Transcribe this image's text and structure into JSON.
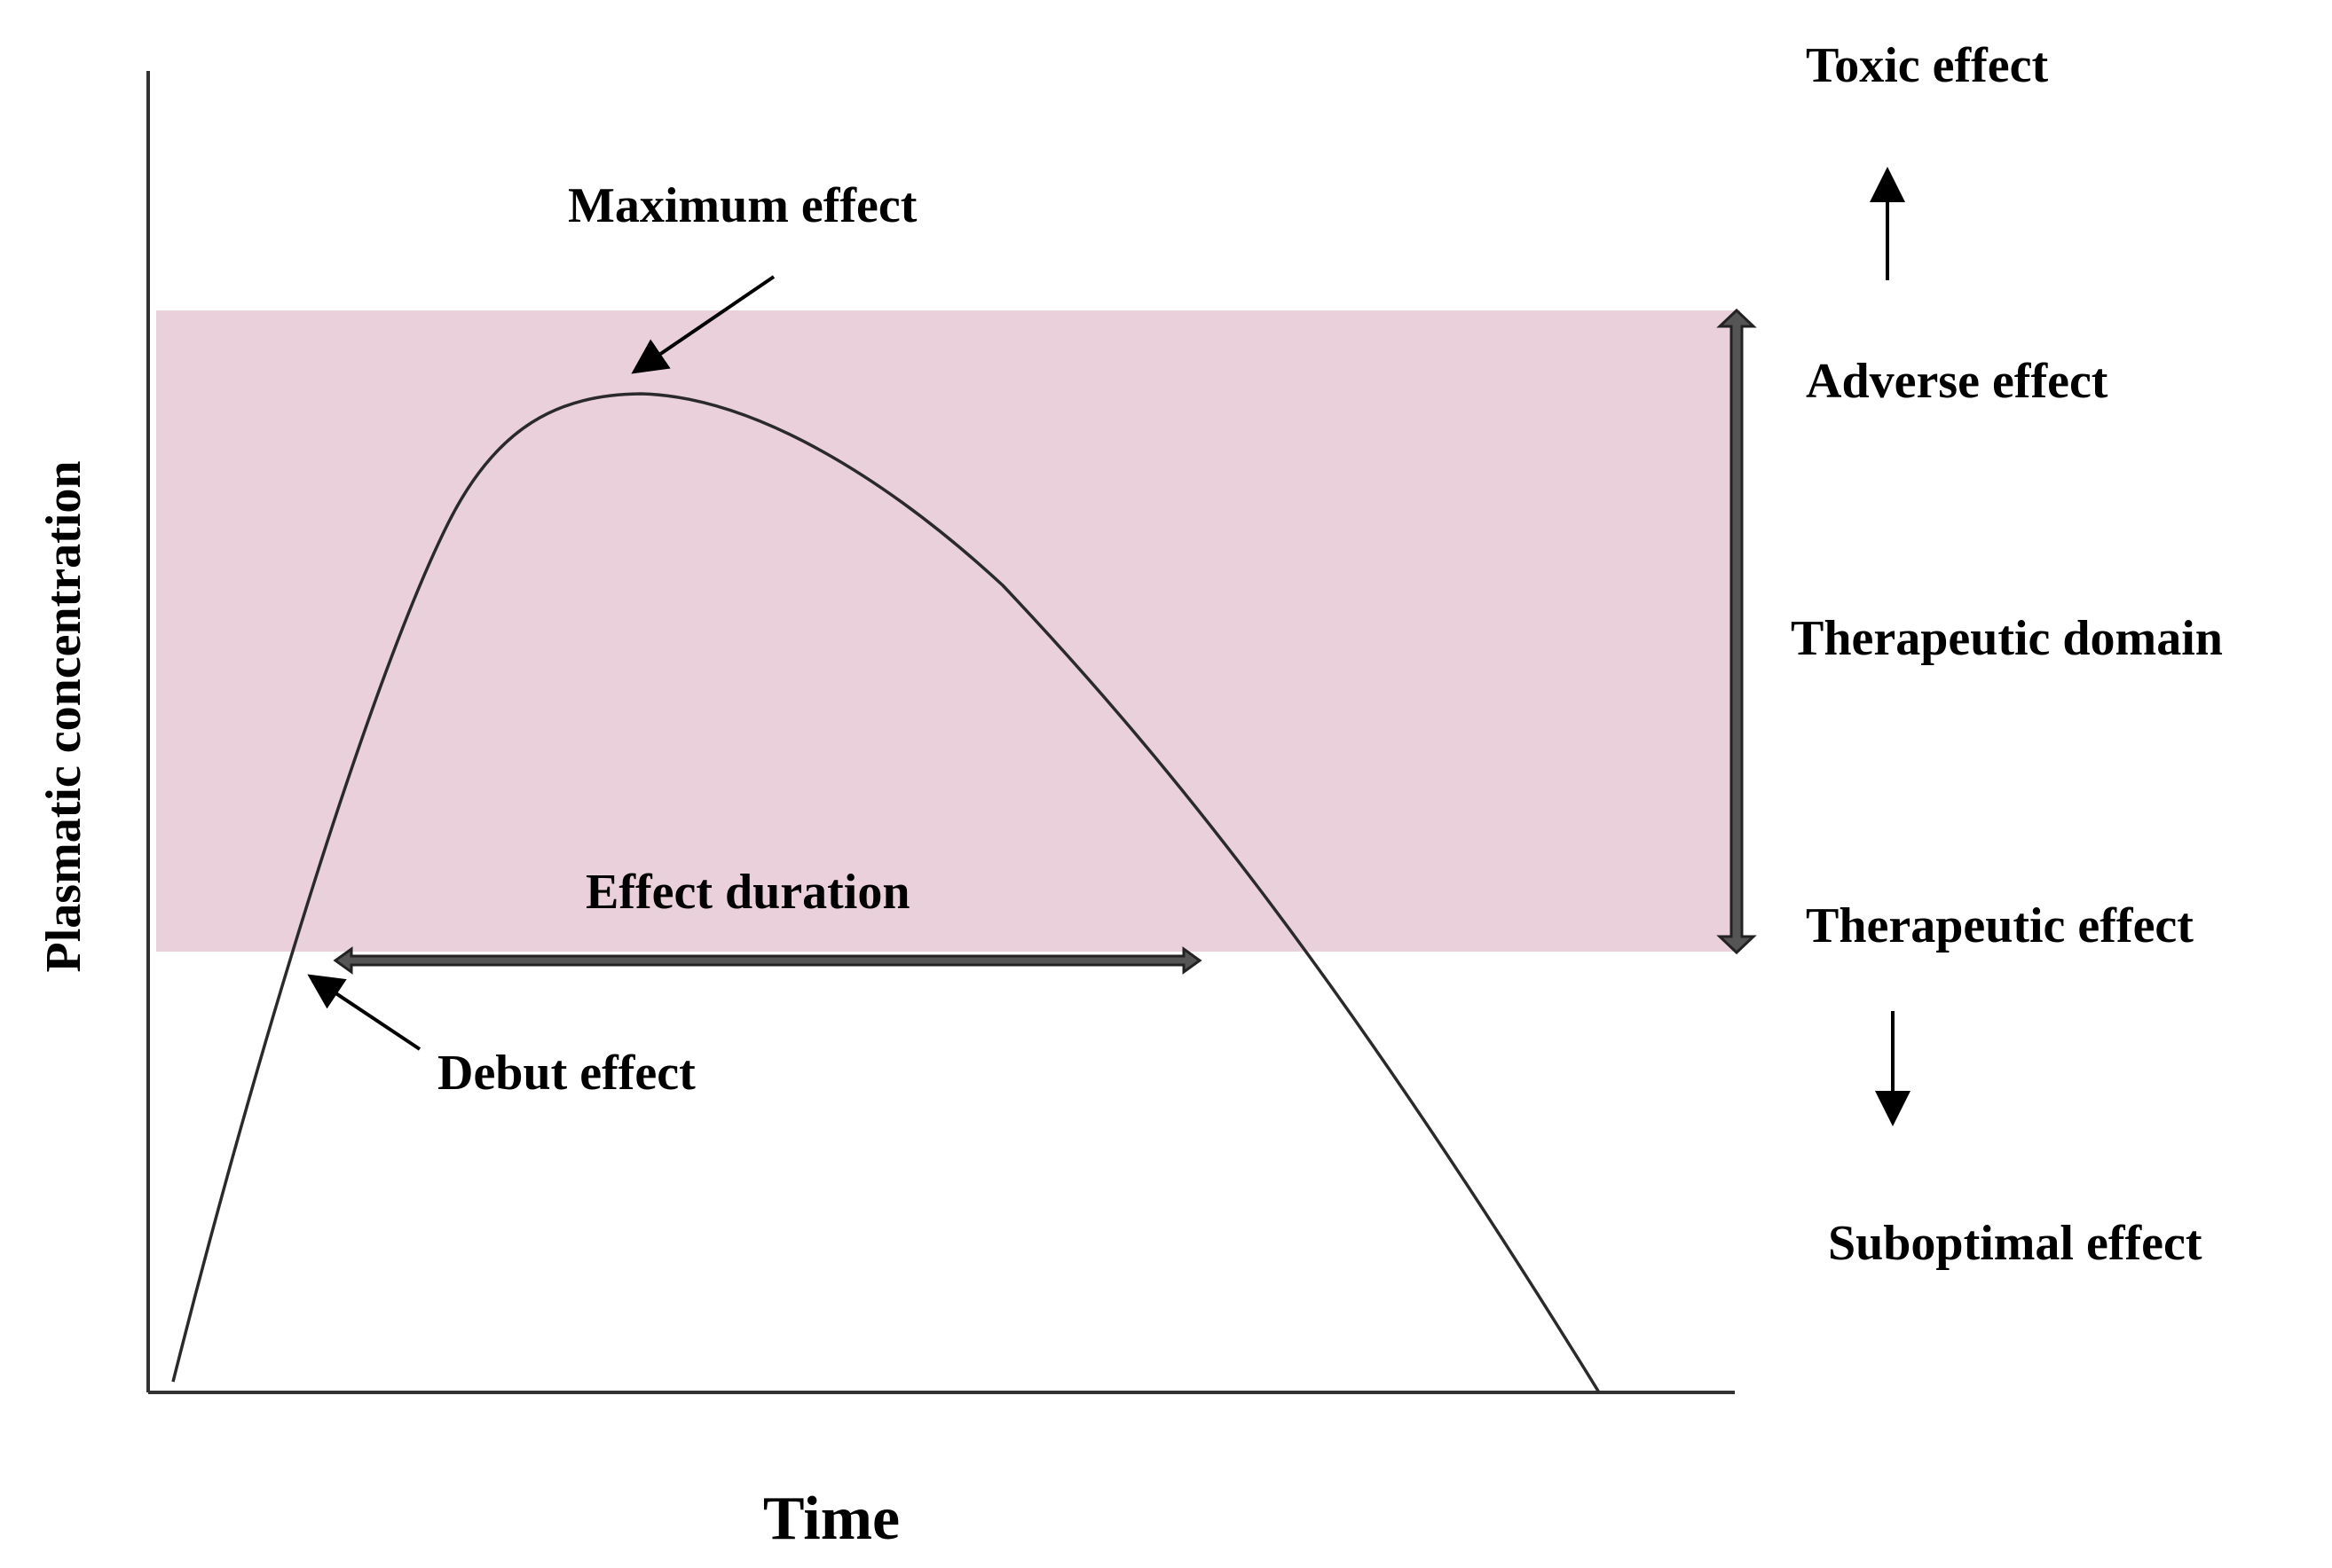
{
  "labels": {
    "toxic_effect": "Toxic effect",
    "maximum_effect": "Maximum effect",
    "adverse_effect": "Adverse effect",
    "therapeutic_domain": "Therapeutic domain",
    "therapeutic_effect": "Therapeutic effect",
    "effect_duration": "Effect duration",
    "debut_effect": "Debut effect",
    "suboptimal_effect": "Suboptimal effect"
  },
  "axes": {
    "y_label": "Plasmatic concentration",
    "x_label": "Time"
  },
  "colors": {
    "therapeutic_band": "#ead0da",
    "arrow_fill": "#555555",
    "arrow_outline": "#222222"
  }
}
